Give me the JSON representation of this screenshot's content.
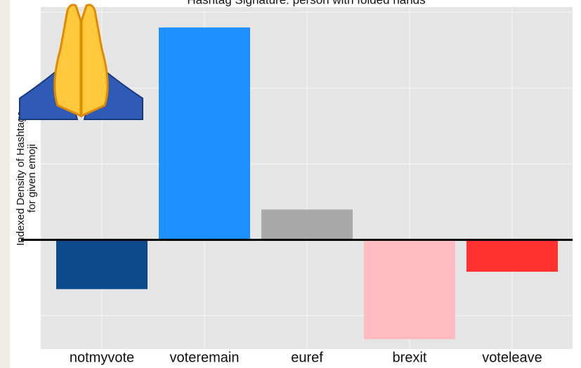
{
  "chart_data": {
    "type": "bar",
    "title": "Hashtag Signature: person with folded hands",
    "ylabel": [
      "Indexed Density of Hashtags",
      "for given emoji"
    ],
    "categories": [
      "notmyvote",
      "voteremain",
      "euref",
      "brexit",
      "voteleave"
    ],
    "values": [
      -0.65,
      2.8,
      0.4,
      -1.31,
      -0.42
    ],
    "colors": [
      "#0d4a8c",
      "#1e90ff",
      "#a9a9a9",
      "#ffbbc0",
      "#ff3030"
    ],
    "ylim": [
      -1.44,
      3.07
    ],
    "yticks": [
      -1,
      0,
      1,
      2,
      3
    ],
    "grid": true
  }
}
